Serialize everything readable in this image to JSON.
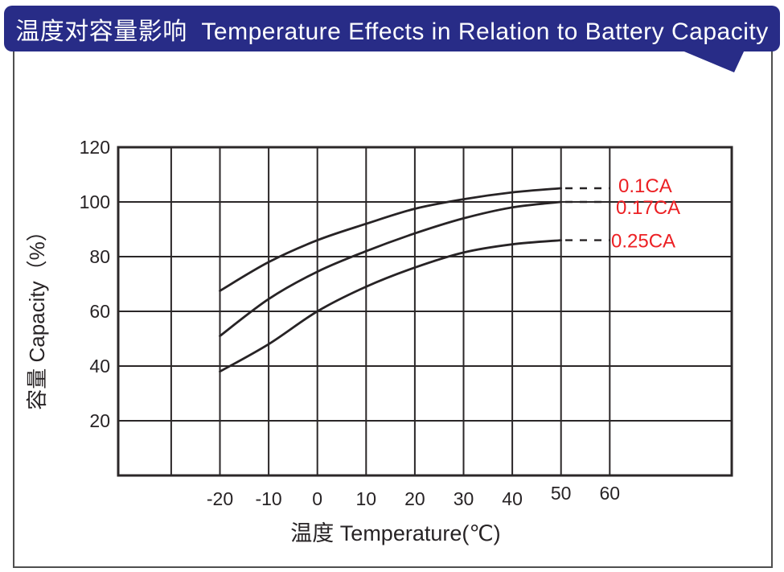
{
  "header": {
    "title": "温度对容量影响  Temperature Effects in Relation to Battery Capacity",
    "banner_color": "#282c87",
    "title_color": "#ffffff"
  },
  "chart_data": {
    "type": "line",
    "title": "温度对容量影响 Temperature Effects in Relation to Battery Capacity",
    "xlabel": "温度  Temperature(℃)",
    "ylabel": "容量  Capacity（%）",
    "xlim": [
      -41,
      85
    ],
    "ylim": [
      0,
      120
    ],
    "grid": true,
    "x_ticks": [
      -20,
      -10,
      0,
      10,
      20,
      30,
      40,
      50,
      60
    ],
    "y_ticks": [
      120,
      100,
      80,
      60,
      40,
      20
    ],
    "grid_x": [
      -30,
      -20,
      -10,
      0,
      10,
      20,
      30,
      40,
      50,
      60
    ],
    "grid_y": [
      20,
      40,
      60,
      80,
      100
    ],
    "x": [
      -20,
      -10,
      0,
      10,
      20,
      30,
      40,
      50
    ],
    "series": [
      {
        "name": "0.1CA",
        "values": [
          67.5,
          78,
          86,
          92,
          97.5,
          101,
          103.5,
          105
        ],
        "end_value": 105
      },
      {
        "name": "0.17CA",
        "values": [
          51,
          64.5,
          74.5,
          82,
          88.5,
          94,
          98,
          100
        ],
        "end_value": 100
      },
      {
        "name": "0.25CA",
        "values": [
          38,
          48,
          60,
          69,
          76,
          81.5,
          84.5,
          86
        ],
        "end_value": 86
      }
    ],
    "legend_position": "right-inside-dashed-leaders",
    "series_label_color": "#ec2024",
    "curve_color": "#272325",
    "grid_color": "#2b2728"
  },
  "frame": {
    "border_color": "#4f4f4f"
  }
}
